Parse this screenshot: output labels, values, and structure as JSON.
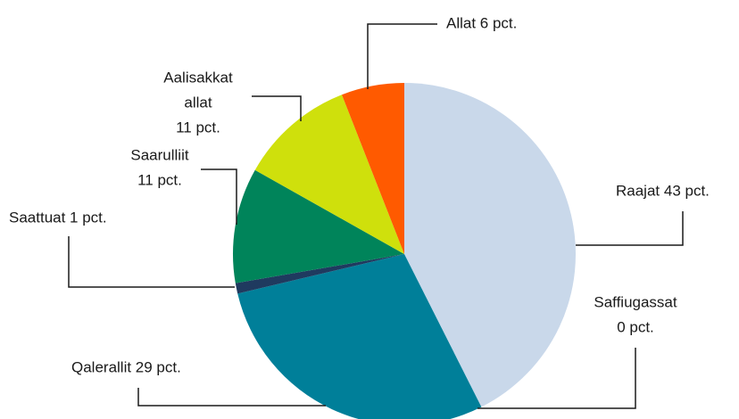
{
  "chart_data": {
    "type": "pie",
    "labels": [
      [
        "Raajat 43 pct."
      ],
      [
        "Saffiugassat",
        "0 pct."
      ],
      [
        "Qalerallit 29 pct."
      ],
      [
        "Saattuat 1 pct."
      ],
      [
        "Saarulliit",
        "11 pct."
      ],
      [
        "Aalisakkat",
        "allat",
        "11 pct."
      ],
      [
        "Allat 6 pct."
      ]
    ],
    "values": [
      43,
      0,
      29,
      1,
      11,
      11,
      6
    ],
    "colors": [
      "#c9d8ea",
      "#7f9fc4",
      "#007f99",
      "#1f3a5f",
      "#00845a",
      "#cfe00c",
      "#ff5a00"
    ]
  }
}
